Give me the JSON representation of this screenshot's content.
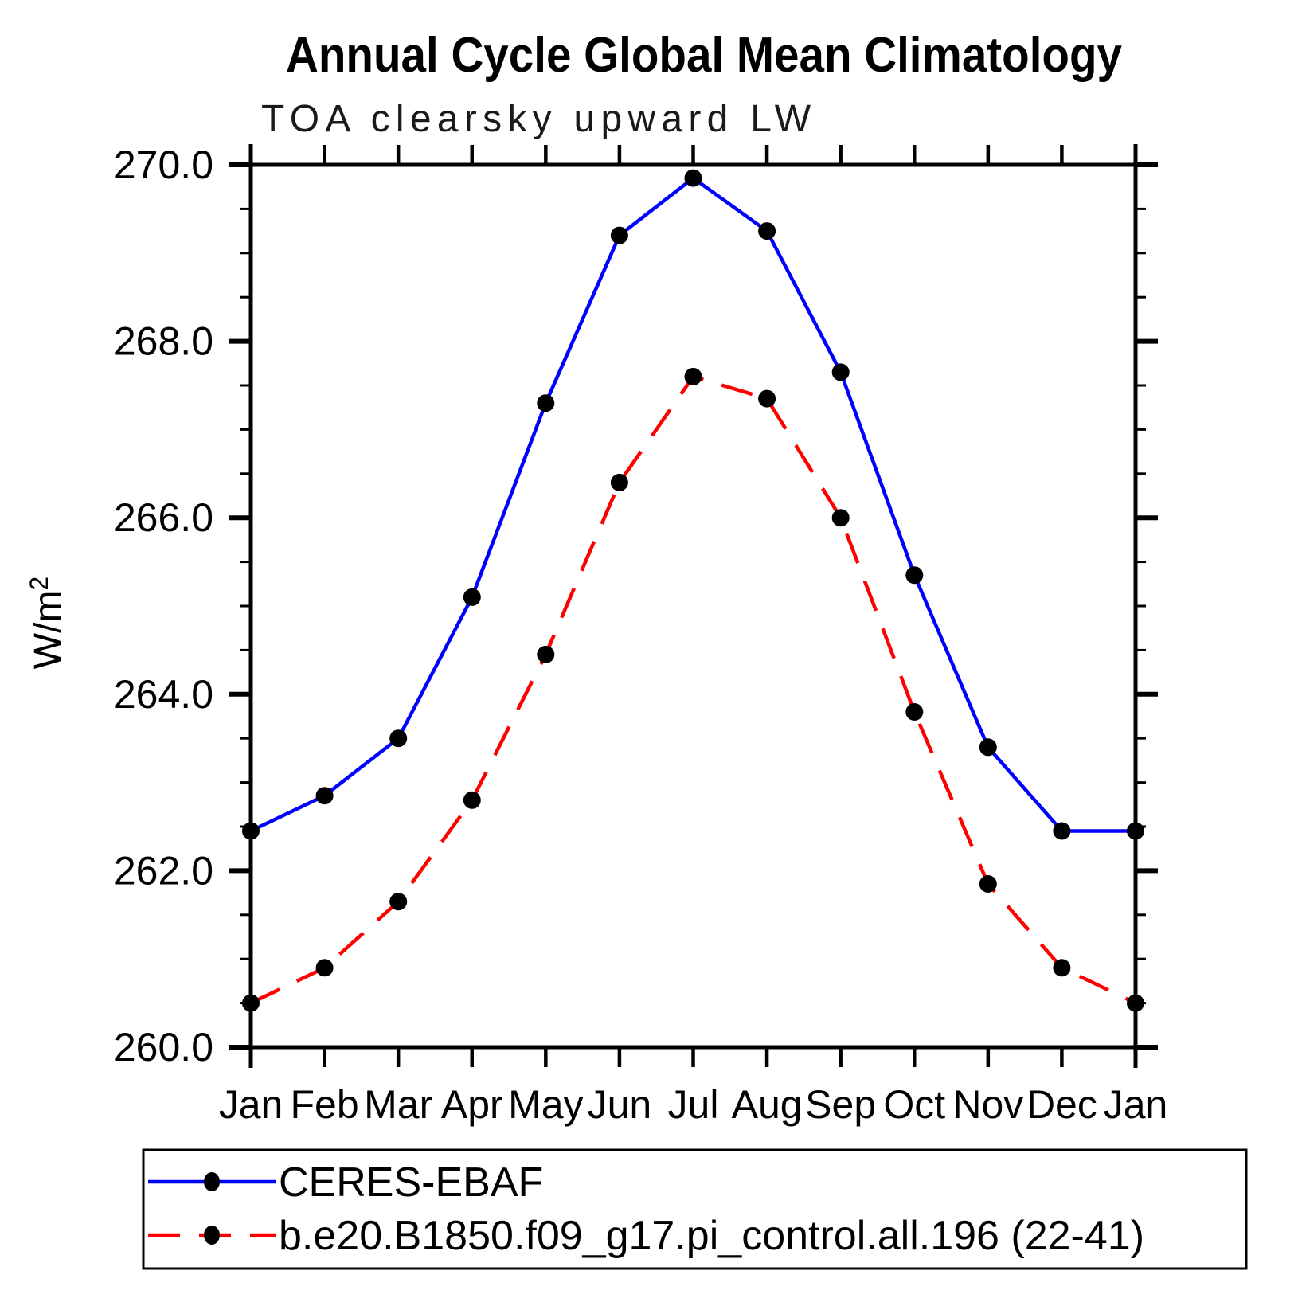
{
  "chart_data": {
    "type": "line",
    "title": "Annual Cycle Global Mean Climatology",
    "subtitle": "TOA clearsky upward LW",
    "ylabel": "W/m²",
    "xlabel": "",
    "categories": [
      "Jan",
      "Feb",
      "Mar",
      "Apr",
      "May",
      "Jun",
      "Jul",
      "Aug",
      "Sep",
      "Oct",
      "Nov",
      "Dec",
      "Jan"
    ],
    "y_tick_labels": [
      "260.0",
      "262.0",
      "264.0",
      "266.0",
      "268.0",
      "270.0"
    ],
    "ylim": [
      260.0,
      270.0
    ],
    "y_major_step": 2.0,
    "y_minor_step": 0.5,
    "grid": "off",
    "legend_position": "bottom",
    "axis_color": "#000000",
    "marker_color": "#000000",
    "series": [
      {
        "name": "CERES-EBAF",
        "color": "#0000ff",
        "style": "solid",
        "marker": "circle",
        "values": [
          262.45,
          262.85,
          263.5,
          265.1,
          267.3,
          269.2,
          269.85,
          269.25,
          267.65,
          265.35,
          263.4,
          262.45,
          262.45
        ]
      },
      {
        "name": "b.e20.B1850.f09_g17.pi_control.all.196 (22-41)",
        "color": "#ff0000",
        "style": "dashed",
        "marker": "circle",
        "values": [
          260.5,
          260.9,
          261.65,
          262.8,
          264.45,
          266.4,
          267.6,
          267.35,
          266.0,
          263.8,
          261.85,
          260.9,
          260.5
        ]
      }
    ]
  }
}
